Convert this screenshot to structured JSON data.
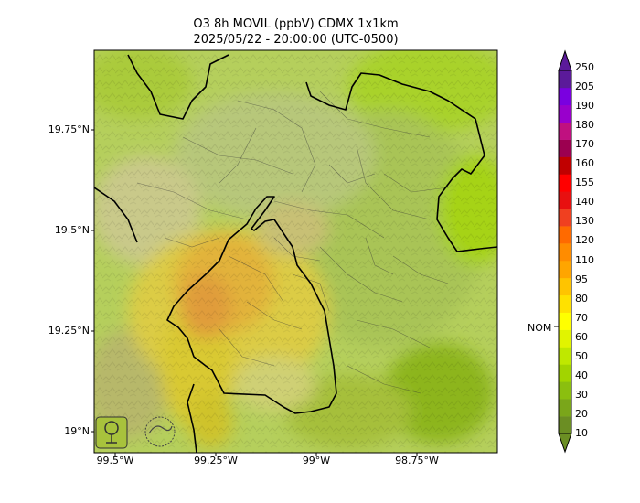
{
  "title_line1": "O3 8h MOVIL (ppbV) CDMX 1x1km",
  "title_line2": "2025/05/22 - 20:00:00 (UTC-0500)",
  "lat_ticks": [
    "19.75°N",
    "19.5°N",
    "19.25°N",
    "19°N"
  ],
  "lon_ticks": [
    "99.5°W",
    "99.25°W",
    "99°W",
    "98.75°W"
  ],
  "colorbar": {
    "levels": [
      "10",
      "20",
      "30",
      "40",
      "50",
      "60",
      "70",
      "80",
      "95",
      "110",
      "120",
      "130",
      "140",
      "155",
      "160",
      "170",
      "180",
      "190",
      "205",
      "250"
    ],
    "colors": [
      "#6b8e23",
      "#7aa61a",
      "#8bbf0f",
      "#a2d400",
      "#bfe800",
      "#e1f400",
      "#ffff00",
      "#ffe100",
      "#ffc400",
      "#ffa500",
      "#ff8c00",
      "#ff6a00",
      "#f04020",
      "#e81010",
      "#ff0000",
      "#c00000",
      "#9c0050",
      "#c01080",
      "#9900cc",
      "#7a00e0",
      "#5b1a9a"
    ],
    "nom_label": "NOM"
  },
  "logos": [
    "SEDEMA",
    "SALUD EN MÉXICO"
  ]
}
